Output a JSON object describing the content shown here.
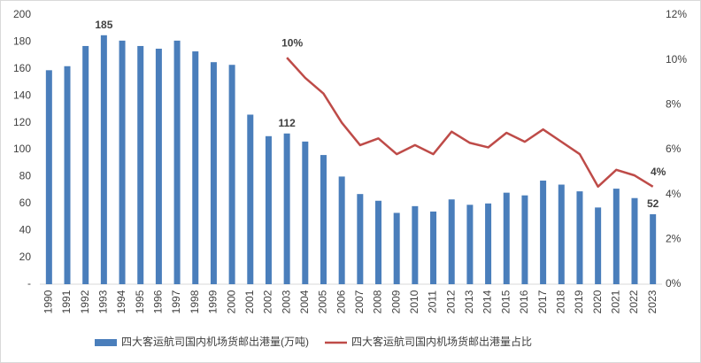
{
  "chart_data": {
    "type": "bar-line",
    "categories": [
      "1990",
      "1991",
      "1992",
      "1993",
      "1994",
      "1995",
      "1996",
      "1997",
      "1998",
      "1999",
      "2000",
      "2001",
      "2002",
      "2003",
      "2004",
      "2005",
      "2006",
      "2007",
      "2008",
      "2009",
      "2010",
      "2011",
      "2012",
      "2013",
      "2014",
      "2015",
      "2016",
      "2017",
      "2018",
      "2019",
      "2020",
      "2021",
      "2022",
      "2023"
    ],
    "series": [
      {
        "name": "四大客运航司国内机场货邮出港量(万吨)",
        "type": "bar",
        "color": "#4a7ebb",
        "values": [
          159,
          162,
          177,
          185,
          181,
          177,
          175,
          181,
          173,
          165,
          163,
          126,
          110,
          112,
          106,
          96,
          80,
          67,
          62,
          53,
          58,
          54,
          63,
          59,
          60,
          68,
          66,
          77,
          74,
          69,
          57,
          71,
          64,
          52
        ],
        "value_labels": [
          null,
          null,
          null,
          "185",
          null,
          null,
          null,
          null,
          null,
          null,
          null,
          null,
          null,
          "112",
          null,
          null,
          null,
          null,
          null,
          null,
          null,
          null,
          null,
          null,
          null,
          null,
          null,
          null,
          null,
          null,
          null,
          null,
          null,
          "52"
        ]
      },
      {
        "name": "四大客运航司国内机场货邮出港量占比",
        "type": "line",
        "axis": "y2",
        "color": "#be4b48",
        "values": [
          null,
          null,
          null,
          null,
          null,
          null,
          null,
          null,
          null,
          null,
          null,
          null,
          null,
          10.1,
          9.2,
          8.5,
          7.2,
          6.2,
          6.5,
          5.8,
          6.2,
          5.8,
          6.8,
          6.3,
          6.1,
          6.75,
          6.35,
          6.9,
          6.35,
          5.8,
          4.35,
          5.1,
          4.85,
          4.35
        ],
        "value_labels": [
          null,
          null,
          null,
          null,
          null,
          null,
          null,
          null,
          null,
          null,
          null,
          null,
          null,
          "10%",
          null,
          null,
          null,
          null,
          null,
          null,
          null,
          null,
          null,
          null,
          null,
          null,
          null,
          null,
          null,
          null,
          null,
          null,
          null,
          "4%"
        ]
      }
    ],
    "ylim": [
      0,
      200
    ],
    "yticks": [
      {
        "value": 0,
        "label": "-"
      },
      20,
      40,
      60,
      80,
      100,
      120,
      140,
      160,
      180,
      200
    ],
    "y2lim": [
      0,
      12
    ],
    "y2ticks": [
      {
        "value": 0,
        "label": "0%"
      },
      {
        "value": 2,
        "label": "2%"
      },
      {
        "value": 4,
        "label": "4%"
      },
      {
        "value": 6,
        "label": "6%"
      },
      {
        "value": 8,
        "label": "8%"
      },
      {
        "value": 10,
        "label": "10%"
      },
      {
        "value": 12,
        "label": "12%"
      }
    ],
    "legend": "bottom"
  }
}
